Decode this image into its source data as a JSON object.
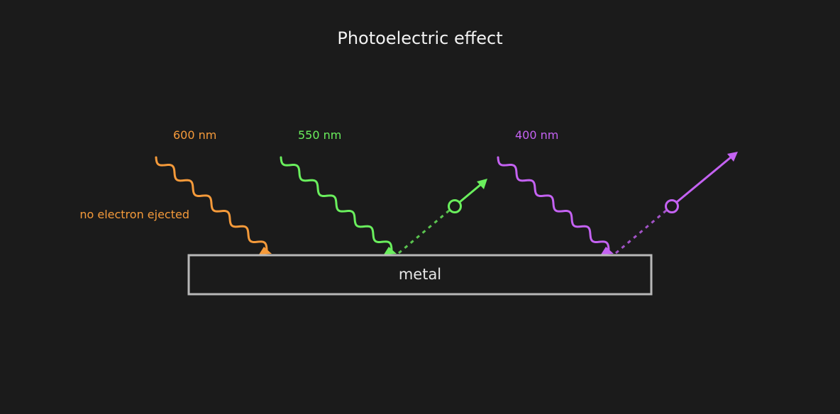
{
  "title": "Photoelectric effect",
  "metal_label": "metal",
  "colors": {
    "background": "#1b1b1b",
    "metal_border": "#b8b8b8",
    "red_light": "#f59a3a",
    "green_light": "#6aef5d",
    "violet_light": "#c462f2"
  },
  "photons": [
    {
      "wavelength_label": "600 nm",
      "color": "#f59a3a",
      "electron_ejected": false,
      "note": "no electron ejected"
    },
    {
      "wavelength_label": "550 nm",
      "color": "#6aef5d",
      "electron_ejected": true,
      "note": ""
    },
    {
      "wavelength_label": "400 nm",
      "color": "#c462f2",
      "electron_ejected": true,
      "note": ""
    }
  ]
}
